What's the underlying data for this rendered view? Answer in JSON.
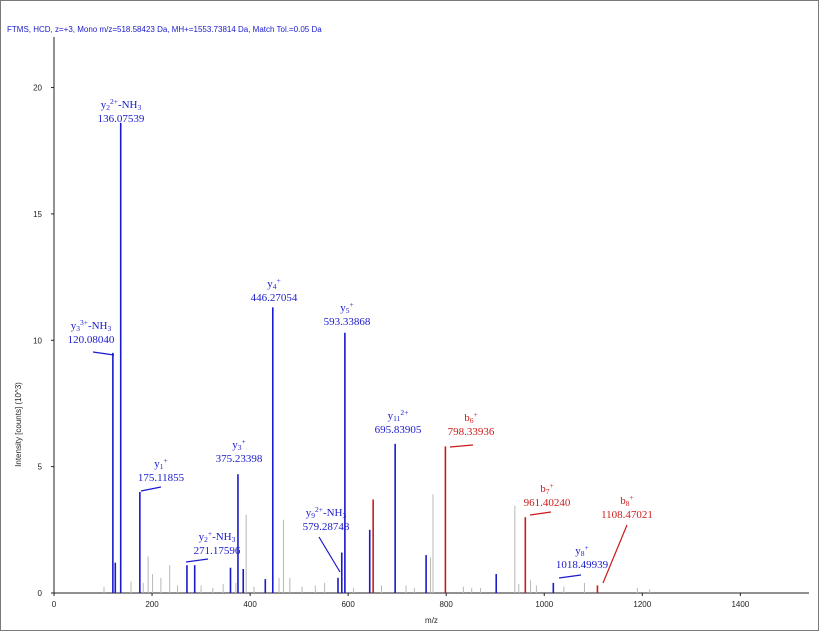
{
  "chart_data": {
    "type": "bar",
    "title": "FTMS, HCD, z=+3, Mono m/z=518.58423 Da, MH+=1553.73814 Da, Match Tol.=0.05 Da",
    "xlabel": "m/z",
    "ylabel": "Intensity [counts] (10^3)",
    "xlim": [
      0,
      1540
    ],
    "ylim": [
      0,
      22
    ],
    "x_ticks": [
      "0",
      "200",
      "400",
      "600",
      "800",
      "1000",
      "1200",
      "1400"
    ],
    "y_ticks": [
      "0",
      "5",
      "10",
      "15",
      "20"
    ],
    "grid": false,
    "colors": {
      "y_ion": "#1a1acc",
      "b_ion": "#cc1a1a",
      "unmatched": "#b8b8b8",
      "header": "#1a1acc",
      "axis": "#222222"
    },
    "series": [
      {
        "name": "y",
        "peaks": [
          {
            "x": 120.0804,
            "y": 9.5
          },
          {
            "x": 125.0,
            "y": 1.2
          },
          {
            "x": 136.07539,
            "y": 18.6
          },
          {
            "x": 175.11855,
            "y": 4.0
          },
          {
            "x": 271.17596,
            "y": 1.1
          },
          {
            "x": 287.0,
            "y": 1.1
          },
          {
            "x": 360.0,
            "y": 1.0
          },
          {
            "x": 375.23398,
            "y": 4.7
          },
          {
            "x": 386.0,
            "y": 0.95
          },
          {
            "x": 431.0,
            "y": 0.55
          },
          {
            "x": 446.27054,
            "y": 11.3
          },
          {
            "x": 579.28748,
            "y": 0.6
          },
          {
            "x": 587.0,
            "y": 1.6
          },
          {
            "x": 593.33868,
            "y": 10.3
          },
          {
            "x": 644.0,
            "y": 2.5
          },
          {
            "x": 695.83905,
            "y": 5.9
          },
          {
            "x": 759.0,
            "y": 1.5
          },
          {
            "x": 902.0,
            "y": 0.75
          },
          {
            "x": 1018.49939,
            "y": 0.4
          }
        ]
      },
      {
        "name": "b",
        "peaks": [
          {
            "x": 651.0,
            "y": 3.7
          },
          {
            "x": 798.33936,
            "y": 5.8
          },
          {
            "x": 961.4024,
            "y": 3.0
          },
          {
            "x": 1108.47021,
            "y": 0.3
          }
        ]
      },
      {
        "name": "unmatched",
        "peaks": [
          {
            "x": 102,
            "y": 0.25
          },
          {
            "x": 157,
            "y": 0.45
          },
          {
            "x": 182,
            "y": 0.4
          },
          {
            "x": 192,
            "y": 1.45
          },
          {
            "x": 201,
            "y": 0.75
          },
          {
            "x": 218,
            "y": 0.6
          },
          {
            "x": 236,
            "y": 1.1
          },
          {
            "x": 252,
            "y": 0.3
          },
          {
            "x": 300,
            "y": 0.3
          },
          {
            "x": 324,
            "y": 0.2
          },
          {
            "x": 345,
            "y": 0.35
          },
          {
            "x": 371,
            "y": 0.4
          },
          {
            "x": 392,
            "y": 3.1
          },
          {
            "x": 408,
            "y": 0.25
          },
          {
            "x": 459,
            "y": 0.6
          },
          {
            "x": 468,
            "y": 2.9
          },
          {
            "x": 481,
            "y": 0.6
          },
          {
            "x": 506,
            "y": 0.25
          },
          {
            "x": 533,
            "y": 0.3
          },
          {
            "x": 552,
            "y": 0.4
          },
          {
            "x": 611,
            "y": 0.2
          },
          {
            "x": 668,
            "y": 0.3
          },
          {
            "x": 718,
            "y": 0.3
          },
          {
            "x": 735,
            "y": 0.2
          },
          {
            "x": 768,
            "y": 1.4
          },
          {
            "x": 773,
            "y": 3.9
          },
          {
            "x": 835,
            "y": 0.25
          },
          {
            "x": 852,
            "y": 0.2
          },
          {
            "x": 870,
            "y": 0.2
          },
          {
            "x": 940,
            "y": 3.45
          },
          {
            "x": 948,
            "y": 0.35
          },
          {
            "x": 972,
            "y": 0.5
          },
          {
            "x": 984,
            "y": 0.3
          },
          {
            "x": 1040,
            "y": 0.25
          },
          {
            "x": 1082,
            "y": 0.4
          },
          {
            "x": 1190,
            "y": 0.2
          },
          {
            "x": 1215,
            "y": 0.15
          }
        ]
      }
    ],
    "annotations": [
      {
        "series": "y",
        "peak_x": 136.07539,
        "ion": "y",
        "sub": "2",
        "sup": "2+",
        "suffix": "-NH",
        "suffix_sub": "3",
        "value": "136.07539"
      },
      {
        "series": "y",
        "peak_x": 120.0804,
        "ion": "y",
        "sub": "3",
        "sup": "3+",
        "suffix": "-NH",
        "suffix_sub": "3",
        "value": "120.08040"
      },
      {
        "series": "y",
        "peak_x": 175.11855,
        "ion": "y",
        "sub": "1",
        "sup": "+",
        "suffix": "",
        "suffix_sub": "",
        "value": "175.11855"
      },
      {
        "series": "y",
        "peak_x": 271.17596,
        "ion": "y",
        "sub": "2",
        "sup": "+",
        "suffix": "-NH",
        "suffix_sub": "3",
        "value": "271.17596"
      },
      {
        "series": "y",
        "peak_x": 375.23398,
        "ion": "y",
        "sub": "3",
        "sup": "+",
        "suffix": "",
        "suffix_sub": "",
        "value": "375.23398"
      },
      {
        "series": "y",
        "peak_x": 446.27054,
        "ion": "y",
        "sub": "4",
        "sup": "+",
        "suffix": "",
        "suffix_sub": "",
        "value": "446.27054"
      },
      {
        "series": "y",
        "peak_x": 593.33868,
        "ion": "y",
        "sub": "5",
        "sup": "+",
        "suffix": "",
        "suffix_sub": "",
        "value": "593.33868"
      },
      {
        "series": "y",
        "peak_x": 579.28748,
        "ion": "y",
        "sub": "9",
        "sup": "2+",
        "suffix": "-NH",
        "suffix_sub": "3",
        "value": "579.28748"
      },
      {
        "series": "y",
        "peak_x": 695.83905,
        "ion": "y",
        "sub": "11",
        "sup": "2+",
        "suffix": "",
        "suffix_sub": "",
        "value": "695.83905"
      },
      {
        "series": "b",
        "peak_x": 798.33936,
        "ion": "b",
        "sub": "6",
        "sup": "+",
        "suffix": "",
        "suffix_sub": "",
        "value": "798.33936"
      },
      {
        "series": "b",
        "peak_x": 961.4024,
        "ion": "b",
        "sub": "7",
        "sup": "+",
        "suffix": "",
        "suffix_sub": "",
        "value": "961.40240"
      },
      {
        "series": "b",
        "peak_x": 1108.47021,
        "ion": "b",
        "sub": "8",
        "sup": "+",
        "suffix": "",
        "suffix_sub": "",
        "value": "1108.47021"
      },
      {
        "series": "y",
        "peak_x": 1018.49939,
        "ion": "y",
        "sub": "8",
        "sup": "+",
        "suffix": "",
        "suffix_sub": "",
        "value": "1018.49939"
      }
    ]
  }
}
